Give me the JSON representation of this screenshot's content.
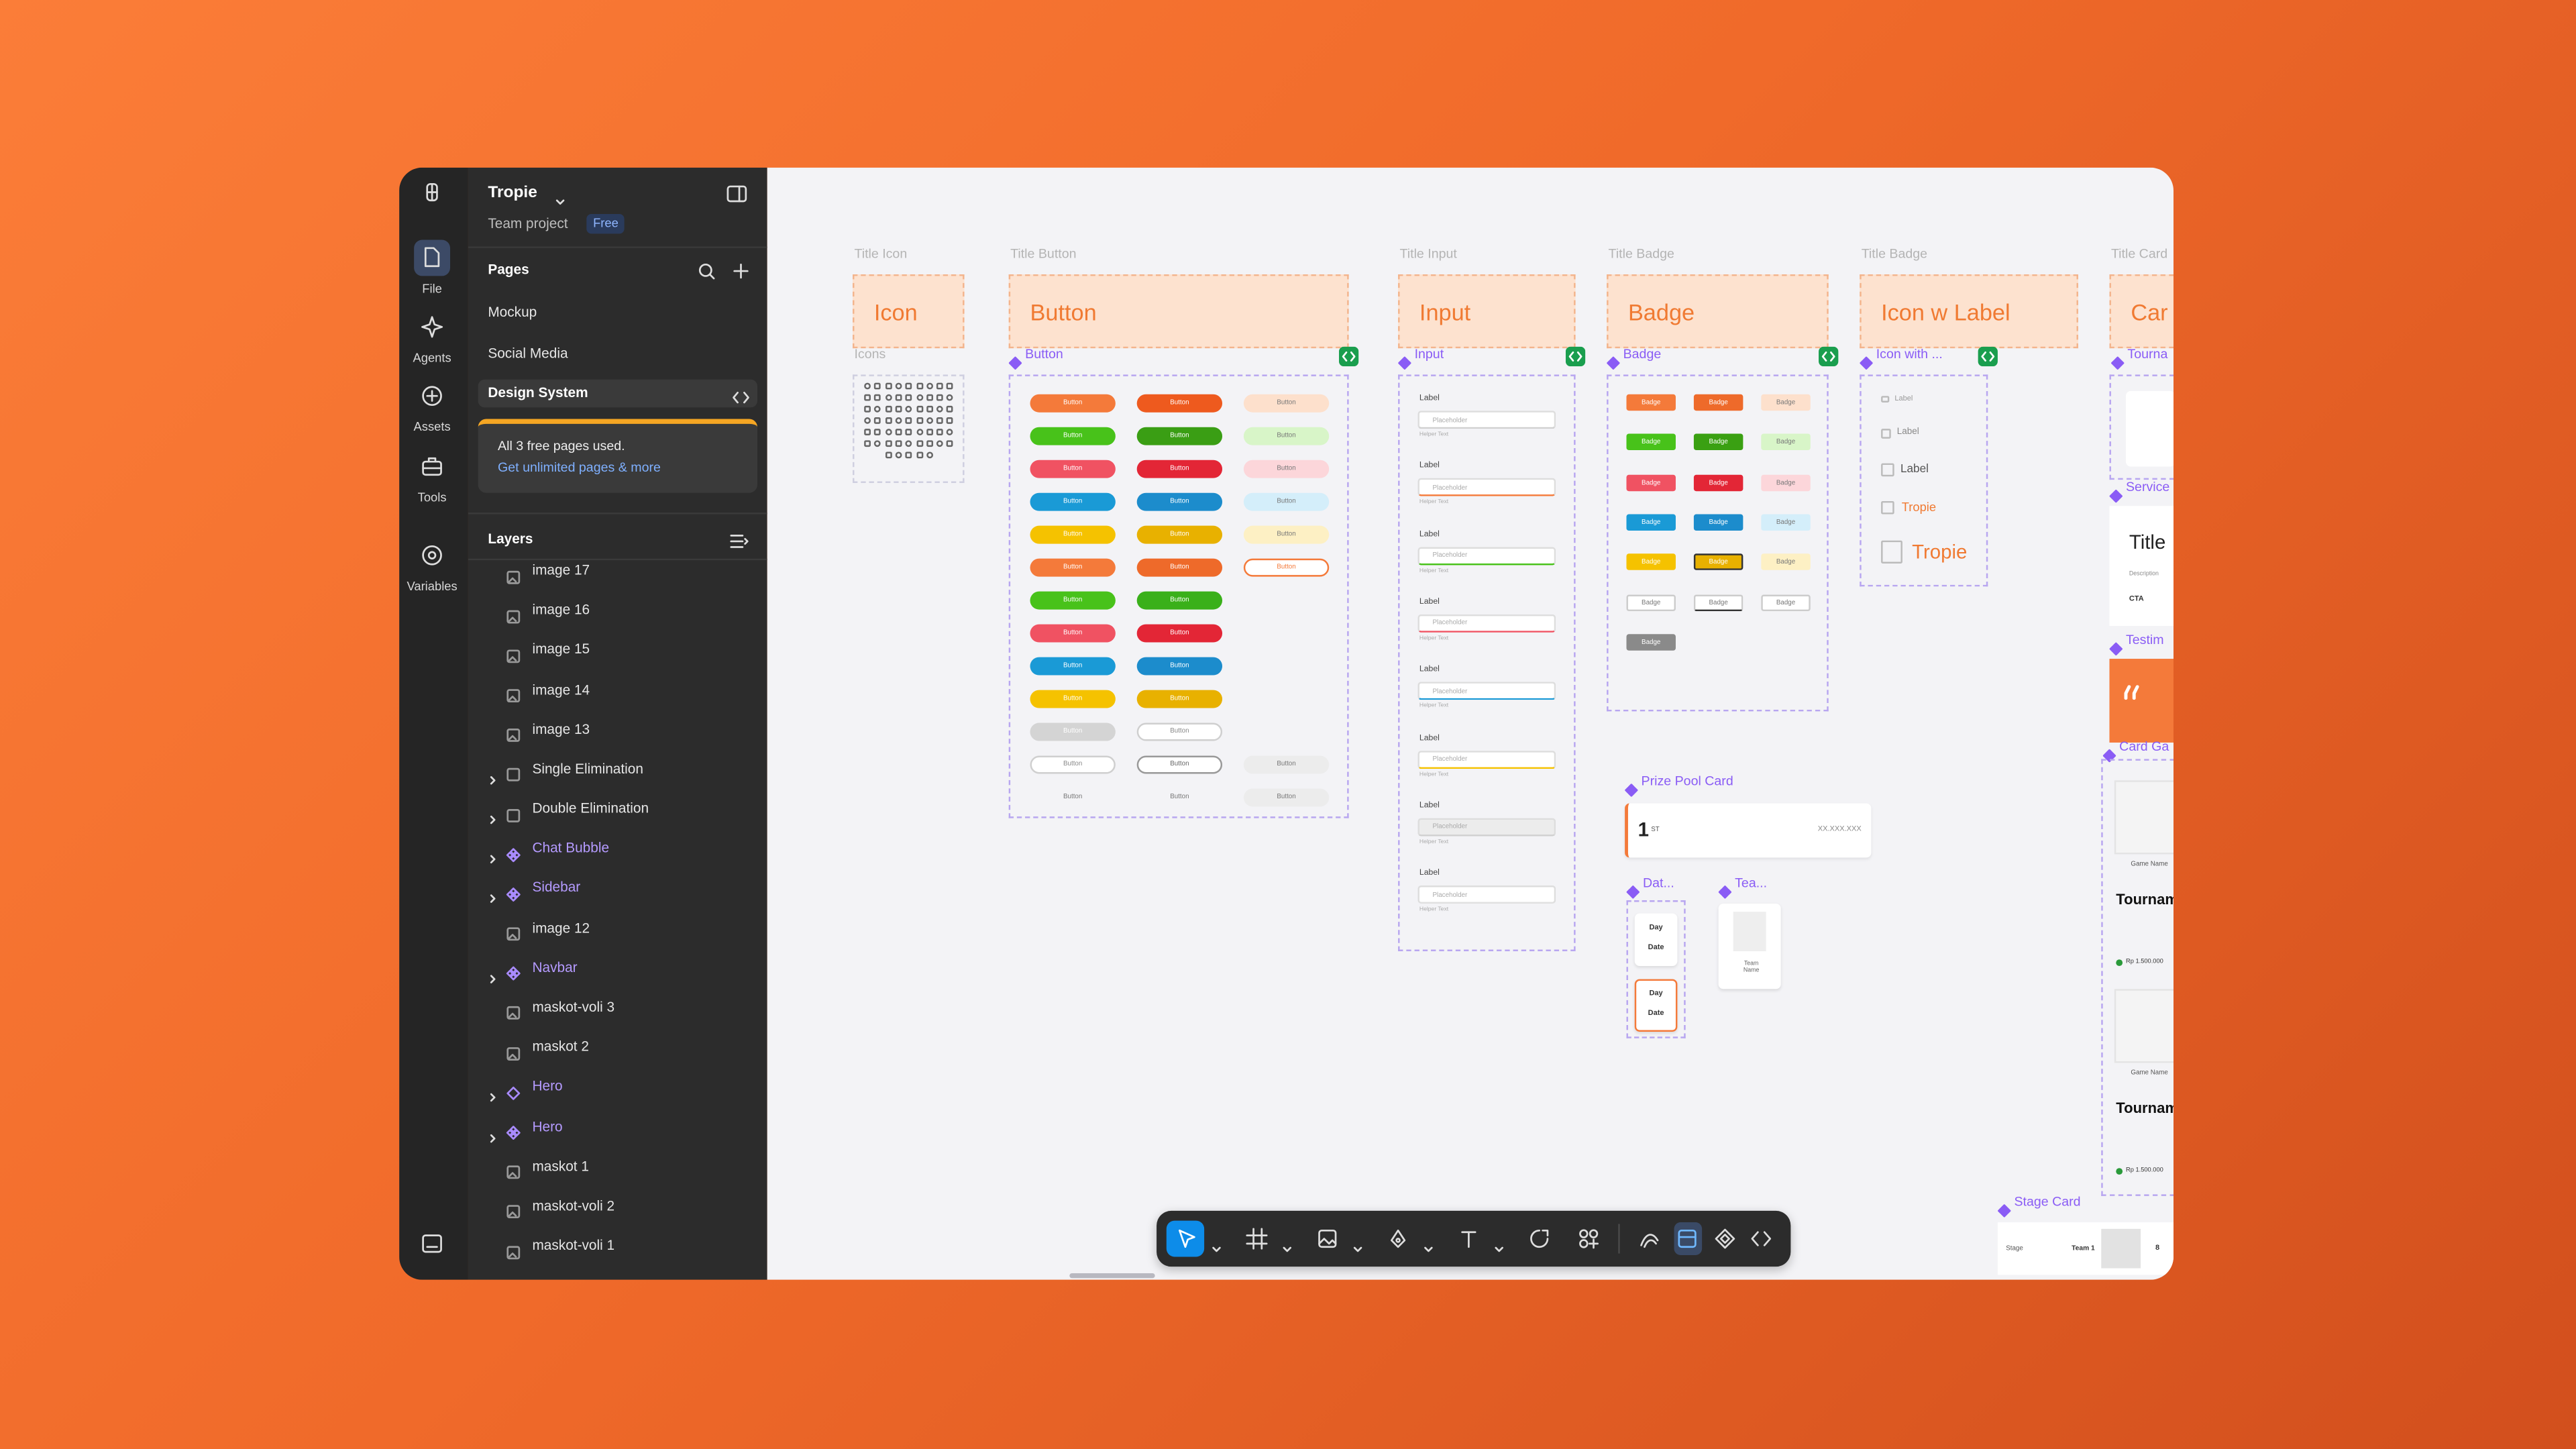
{
  "rail": {
    "items": [
      "File",
      "Agents",
      "Assets",
      "Tools",
      "Variables"
    ]
  },
  "panel": {
    "project": "Tropie",
    "team": "Team project",
    "plan": "Free",
    "pages_title": "Pages",
    "pages": [
      "Mockup",
      "Social Media",
      "Design System"
    ],
    "notice": "All 3 free pages used.",
    "notice_link": "Get unlimited pages & more",
    "layers_title": "Layers",
    "layers": [
      "image 17",
      "image 16",
      "image 15",
      "image 14",
      "image 13",
      "Single Elimination",
      "Double Elimination",
      "Chat Bubble",
      "Sidebar",
      "image 12",
      "Navbar",
      "maskot-voli 3",
      "maskot 2",
      "Hero",
      "Hero",
      "maskot 1",
      "maskot-voli 2",
      "maskot-voli 1"
    ]
  },
  "canvas": {
    "sections": [
      {
        "title": "Title Icon",
        "heading": "Icon",
        "component": "Icons"
      },
      {
        "title": "Title Button",
        "heading": "Button",
        "component": "Button"
      },
      {
        "title": "Title Input",
        "heading": "Input",
        "component": "Input"
      },
      {
        "title": "Title Badge",
        "heading": "Badge",
        "component": "Badge"
      },
      {
        "title": "Title Badge",
        "heading": "Icon w Label",
        "component": "Icon with ..."
      },
      {
        "title": "Title Card",
        "heading": "Car",
        "component": "Tourna"
      }
    ],
    "button_text": "Button",
    "input": {
      "label": "Label",
      "placeholder": "Placeholder",
      "helper": "Helper Text"
    },
    "badge_text": "Badge",
    "icon_labels": [
      "Label",
      "Label",
      "Label",
      "Tropie",
      "Tropie"
    ],
    "prize": {
      "component": "Prize Pool Card",
      "rank": "1",
      "suffix": "ST",
      "amount": "XX.XXX.XXX"
    },
    "date": {
      "component": "Dat...",
      "day": "Day",
      "date": "Date"
    },
    "team": {
      "component": "Tea...",
      "name": "Team Name"
    },
    "service": {
      "component": "Service",
      "title": "Title",
      "description": "Description",
      "cta": "CTA"
    },
    "testimonial": {
      "component": "Testim"
    },
    "card_game": {
      "component": "Card Ga",
      "game": "Game Name",
      "title": "Tournam",
      "prize": "Rp 1.500.000"
    },
    "stage": {
      "component": "Stage Card",
      "stage": "Stage",
      "team": "Team 1",
      "score": "8"
    }
  }
}
